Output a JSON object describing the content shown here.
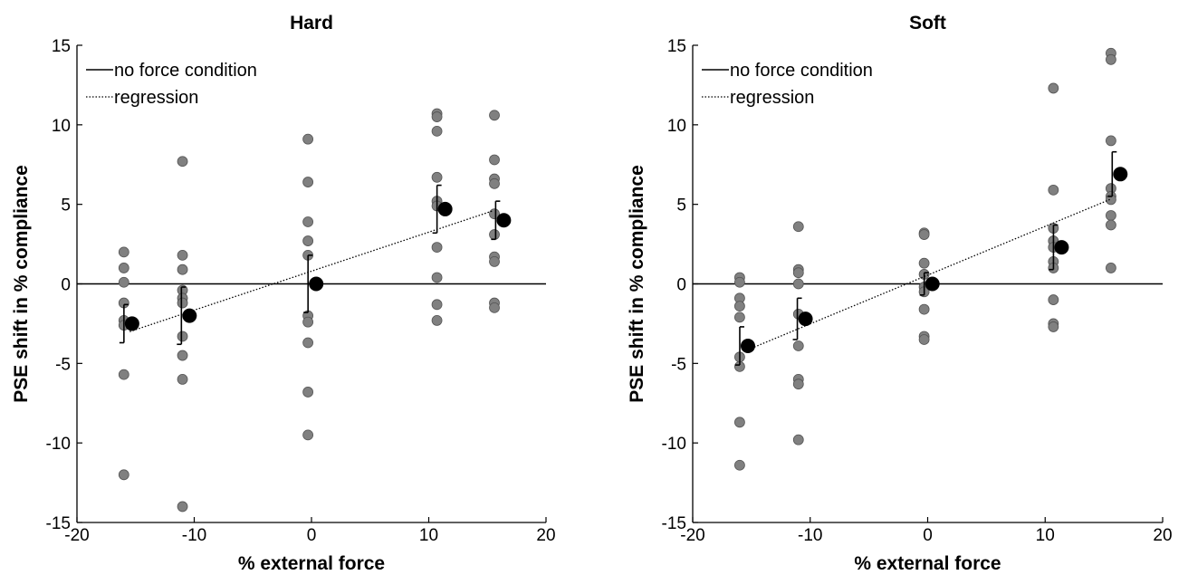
{
  "chart_data": [
    {
      "type": "scatter",
      "title": "Hard",
      "xlabel": "% external force",
      "ylabel": "PSE shift in % compliance",
      "xlim": [
        -20,
        20
      ],
      "ylim": [
        -15,
        15
      ],
      "xticks": [
        -20,
        -10,
        0,
        10,
        20
      ],
      "yticks": [
        -15,
        -10,
        -5,
        0,
        5,
        10,
        15
      ],
      "grid": false,
      "legend_position": "top-left",
      "legend": [
        "no force condition",
        "regression"
      ],
      "reference_line_y": 0,
      "regression": {
        "x": [
          -15.5,
          15.5
        ],
        "y": [
          -3.0,
          4.6
        ]
      },
      "individual_points": [
        {
          "x": -16,
          "y": 2.0
        },
        {
          "x": -16,
          "y": 1.0
        },
        {
          "x": -16,
          "y": 0.1
        },
        {
          "x": -16,
          "y": -1.2
        },
        {
          "x": -16,
          "y": -2.3
        },
        {
          "x": -16,
          "y": -2.6
        },
        {
          "x": -16,
          "y": -5.7
        },
        {
          "x": -16,
          "y": -12.0
        },
        {
          "x": -11,
          "y": 7.7
        },
        {
          "x": -11,
          "y": 1.8
        },
        {
          "x": -11,
          "y": 0.9
        },
        {
          "x": -11,
          "y": -0.4
        },
        {
          "x": -11,
          "y": -0.9
        },
        {
          "x": -11,
          "y": -1.2
        },
        {
          "x": -11,
          "y": -3.3
        },
        {
          "x": -11,
          "y": -4.5
        },
        {
          "x": -11,
          "y": -6.0
        },
        {
          "x": -11,
          "y": -14.0
        },
        {
          "x": -0.3,
          "y": 9.1
        },
        {
          "x": -0.3,
          "y": 6.4
        },
        {
          "x": -0.3,
          "y": 3.9
        },
        {
          "x": -0.3,
          "y": 2.7
        },
        {
          "x": -0.3,
          "y": 1.8
        },
        {
          "x": -0.3,
          "y": -2.0
        },
        {
          "x": -0.3,
          "y": -2.4
        },
        {
          "x": -0.3,
          "y": -3.7
        },
        {
          "x": -0.3,
          "y": -6.8
        },
        {
          "x": -0.3,
          "y": -9.5
        },
        {
          "x": 10.7,
          "y": 10.7
        },
        {
          "x": 10.7,
          "y": 10.5
        },
        {
          "x": 10.7,
          "y": 9.6
        },
        {
          "x": 10.7,
          "y": 6.7
        },
        {
          "x": 10.7,
          "y": 5.2
        },
        {
          "x": 10.7,
          "y": 4.9
        },
        {
          "x": 10.7,
          "y": 2.3
        },
        {
          "x": 10.7,
          "y": 0.4
        },
        {
          "x": 10.7,
          "y": -1.3
        },
        {
          "x": 10.7,
          "y": -2.3
        },
        {
          "x": 15.6,
          "y": 10.6
        },
        {
          "x": 15.6,
          "y": 7.8
        },
        {
          "x": 15.6,
          "y": 6.6
        },
        {
          "x": 15.6,
          "y": 6.3
        },
        {
          "x": 15.6,
          "y": 4.4
        },
        {
          "x": 15.6,
          "y": 3.1
        },
        {
          "x": 15.6,
          "y": 1.7
        },
        {
          "x": 15.6,
          "y": 1.4
        },
        {
          "x": 15.6,
          "y": -1.2
        },
        {
          "x": 15.6,
          "y": -1.5
        }
      ],
      "means": [
        {
          "x": -15.3,
          "y": -2.5,
          "err": 1.2
        },
        {
          "x": -10.4,
          "y": -2.0,
          "err": 1.8
        },
        {
          "x": 0.4,
          "y": 0.0,
          "err": 1.8
        },
        {
          "x": 11.4,
          "y": 4.7,
          "err": 1.5
        },
        {
          "x": 16.4,
          "y": 4.0,
          "err": 1.2
        }
      ]
    },
    {
      "type": "scatter",
      "title": "Soft",
      "xlabel": "% external force",
      "ylabel": "PSE shift in % compliance",
      "xlim": [
        -20,
        20
      ],
      "ylim": [
        -15,
        15
      ],
      "xticks": [
        -20,
        -10,
        0,
        10,
        20
      ],
      "yticks": [
        -15,
        -10,
        -5,
        0,
        5,
        10,
        15
      ],
      "grid": false,
      "legend_position": "top-left",
      "legend": [
        "no force condition",
        "regression"
      ],
      "reference_line_y": 0,
      "regression": {
        "x": [
          -15.5,
          15.5
        ],
        "y": [
          -4.2,
          5.3
        ]
      },
      "individual_points": [
        {
          "x": -16,
          "y": 0.4
        },
        {
          "x": -16,
          "y": 0.1
        },
        {
          "x": -16,
          "y": -0.9
        },
        {
          "x": -16,
          "y": -1.4
        },
        {
          "x": -16,
          "y": -2.1
        },
        {
          "x": -16,
          "y": -4.6
        },
        {
          "x": -16,
          "y": -5.2
        },
        {
          "x": -16,
          "y": -8.7
        },
        {
          "x": -16,
          "y": -11.4
        },
        {
          "x": -11,
          "y": 3.6
        },
        {
          "x": -11,
          "y": 0.9
        },
        {
          "x": -11,
          "y": 0.7
        },
        {
          "x": -11,
          "y": 0.0
        },
        {
          "x": -11,
          "y": -1.9
        },
        {
          "x": -11,
          "y": -3.9
        },
        {
          "x": -11,
          "y": -6.0
        },
        {
          "x": -11,
          "y": -6.3
        },
        {
          "x": -11,
          "y": -9.8
        },
        {
          "x": -0.3,
          "y": 3.2
        },
        {
          "x": -0.3,
          "y": 3.1
        },
        {
          "x": -0.3,
          "y": 1.3
        },
        {
          "x": -0.3,
          "y": 0.6
        },
        {
          "x": -0.3,
          "y": -0.2
        },
        {
          "x": -0.3,
          "y": -0.5
        },
        {
          "x": -0.3,
          "y": -1.6
        },
        {
          "x": -0.3,
          "y": -3.3
        },
        {
          "x": -0.3,
          "y": -3.5
        },
        {
          "x": 10.7,
          "y": 12.3
        },
        {
          "x": 10.7,
          "y": 5.9
        },
        {
          "x": 10.7,
          "y": 3.5
        },
        {
          "x": 10.7,
          "y": 2.7
        },
        {
          "x": 10.7,
          "y": 2.3
        },
        {
          "x": 10.7,
          "y": 1.4
        },
        {
          "x": 10.7,
          "y": 1.0
        },
        {
          "x": 10.7,
          "y": -1.0
        },
        {
          "x": 10.7,
          "y": -2.5
        },
        {
          "x": 10.7,
          "y": -2.7
        },
        {
          "x": 15.6,
          "y": 14.5
        },
        {
          "x": 15.6,
          "y": 14.1
        },
        {
          "x": 15.6,
          "y": 9.0
        },
        {
          "x": 15.6,
          "y": 6.0
        },
        {
          "x": 15.6,
          "y": 5.5
        },
        {
          "x": 15.6,
          "y": 5.3
        },
        {
          "x": 15.6,
          "y": 4.3
        },
        {
          "x": 15.6,
          "y": 3.7
        },
        {
          "x": 15.6,
          "y": 1.0
        }
      ],
      "means": [
        {
          "x": -15.3,
          "y": -3.9,
          "err": 1.2
        },
        {
          "x": -10.4,
          "y": -2.2,
          "err": 1.3
        },
        {
          "x": 0.4,
          "y": 0.0,
          "err": 0.7
        },
        {
          "x": 11.4,
          "y": 2.3,
          "err": 1.4
        },
        {
          "x": 16.4,
          "y": 6.9,
          "err": 1.4
        }
      ]
    }
  ]
}
